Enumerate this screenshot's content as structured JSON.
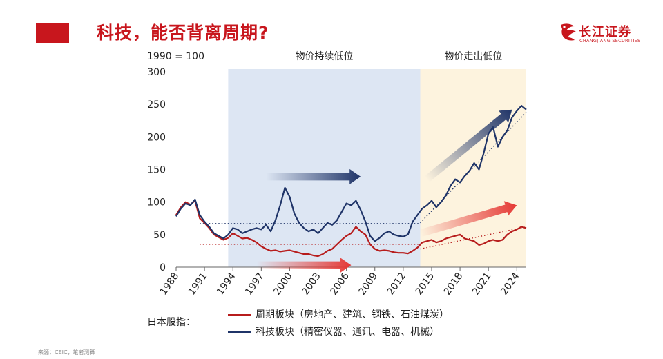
{
  "header": {
    "title": "科技，能否背离周期?",
    "logo_text": "长江证券",
    "logo_subtext": "CHANGJIANG SECURITIES"
  },
  "source": "来源：CEIC，笔者测算",
  "legend_prefix": "日本股指：",
  "colors": {
    "accent": "#c8161d",
    "cycle": "#b71c1c",
    "tech": "#1f3468",
    "shade_low": "#dde6f3",
    "shade_exit": "#fdf3de"
  },
  "chart_data": {
    "type": "line",
    "ylabel": "1990 = 100",
    "ylim": [
      0,
      300
    ],
    "yticks": [
      0,
      50,
      100,
      150,
      200,
      250,
      300
    ],
    "xlim": [
      1988,
      2025
    ],
    "xticks": [
      1988,
      1991,
      1994,
      1997,
      2000,
      2003,
      2006,
      2009,
      2012,
      2015,
      2018,
      2021,
      2024
    ],
    "regions": [
      {
        "label": "物价持续低位",
        "start": 1993.5,
        "end": 2013.8
      },
      {
        "label": "物价走出低位",
        "start": 2013.8,
        "end": 2025
      }
    ],
    "series": [
      {
        "name": "周期板块（房地产、建筑、钢铁、石油煤炭）",
        "x": [
          1988,
          1988.5,
          1989,
          1989.5,
          1990,
          1990.5,
          1991,
          1991.5,
          1992,
          1992.5,
          1993,
          1993.5,
          1994,
          1994.5,
          1995,
          1995.5,
          1996,
          1996.5,
          1997,
          1997.5,
          1998,
          1998.5,
          1999,
          1999.5,
          2000,
          2000.5,
          2001,
          2001.5,
          2002,
          2002.5,
          2003,
          2003.5,
          2004,
          2004.5,
          2005,
          2005.5,
          2006,
          2006.5,
          2007,
          2007.5,
          2008,
          2008.5,
          2009,
          2009.5,
          2010,
          2010.5,
          2011,
          2011.5,
          2012,
          2012.5,
          2013,
          2013.5,
          2014,
          2014.5,
          2015,
          2015.5,
          2016,
          2016.5,
          2017,
          2017.5,
          2018,
          2018.5,
          2019,
          2019.5,
          2020,
          2020.5,
          2021,
          2021.5,
          2022,
          2022.5,
          2023,
          2023.5,
          2024,
          2024.5,
          2025
        ],
        "values": [
          80,
          92,
          100,
          96,
          102,
          75,
          68,
          60,
          50,
          46,
          42,
          45,
          52,
          48,
          44,
          45,
          42,
          38,
          32,
          28,
          25,
          26,
          24,
          25,
          26,
          24,
          22,
          20,
          20,
          18,
          17,
          20,
          25,
          28,
          35,
          42,
          48,
          52,
          62,
          55,
          50,
          35,
          28,
          25,
          26,
          25,
          23,
          22,
          22,
          21,
          25,
          30,
          38,
          40,
          42,
          38,
          40,
          44,
          46,
          48,
          50,
          44,
          42,
          40,
          34,
          36,
          40,
          42,
          40,
          42,
          50,
          55,
          58,
          62,
          60
        ]
      },
      {
        "name": "科技板块（精密仪器、通讯、电器、机械）",
        "x": [
          1988,
          1988.5,
          1989,
          1989.5,
          1990,
          1990.5,
          1991,
          1991.5,
          1992,
          1992.5,
          1993,
          1993.5,
          1994,
          1994.5,
          1995,
          1995.5,
          1996,
          1996.5,
          1997,
          1997.5,
          1998,
          1998.5,
          1999,
          1999.5,
          2000,
          2000.5,
          2001,
          2001.5,
          2002,
          2002.5,
          2003,
          2003.5,
          2004,
          2004.5,
          2005,
          2005.5,
          2006,
          2006.5,
          2007,
          2007.5,
          2008,
          2008.5,
          2009,
          2009.5,
          2010,
          2010.5,
          2011,
          2011.5,
          2012,
          2012.5,
          2013,
          2013.5,
          2014,
          2014.5,
          2015,
          2015.5,
          2016,
          2016.5,
          2017,
          2017.5,
          2018,
          2018.5,
          2019,
          2019.5,
          2020,
          2020.5,
          2021,
          2021.5,
          2022,
          2022.5,
          2023,
          2023.5,
          2024,
          2024.5,
          2025
        ],
        "values": [
          78,
          90,
          98,
          95,
          104,
          80,
          70,
          62,
          52,
          48,
          44,
          50,
          60,
          58,
          52,
          55,
          58,
          60,
          58,
          65,
          55,
          72,
          95,
          122,
          108,
          82,
          68,
          60,
          55,
          58,
          52,
          60,
          68,
          65,
          72,
          85,
          98,
          95,
          102,
          88,
          70,
          48,
          40,
          45,
          52,
          55,
          50,
          48,
          47,
          50,
          70,
          80,
          90,
          95,
          102,
          92,
          100,
          110,
          125,
          135,
          130,
          140,
          148,
          160,
          150,
          175,
          205,
          215,
          185,
          200,
          210,
          230,
          240,
          248,
          242
        ]
      }
    ],
    "trendlines": [
      {
        "series": 0,
        "x": [
          1990.5,
          2013.8
        ],
        "y": [
          35,
          35
        ]
      },
      {
        "series": 1,
        "x": [
          1990.5,
          2013.8
        ],
        "y": [
          67,
          67
        ]
      },
      {
        "series": 0,
        "x": [
          2013.8,
          2025
        ],
        "y": [
          28,
          62
        ]
      },
      {
        "series": 1,
        "x": [
          2013.8,
          2025
        ],
        "y": [
          68,
          238
        ]
      }
    ],
    "arrows": [
      {
        "color": "tech",
        "x": [
          1997.5,
          2007.5
        ],
        "y": [
          139,
          139
        ]
      },
      {
        "color": "cycle",
        "x": [
          1996.5,
          2006.5
        ],
        "y": [
          3,
          3
        ]
      },
      {
        "color": "tech",
        "x": [
          2014.5,
          2023.5
        ],
        "y": [
          135,
          242
        ]
      },
      {
        "color": "cycle",
        "x": [
          2013.8,
          2024
        ],
        "y": [
          52,
          95
        ]
      }
    ]
  }
}
